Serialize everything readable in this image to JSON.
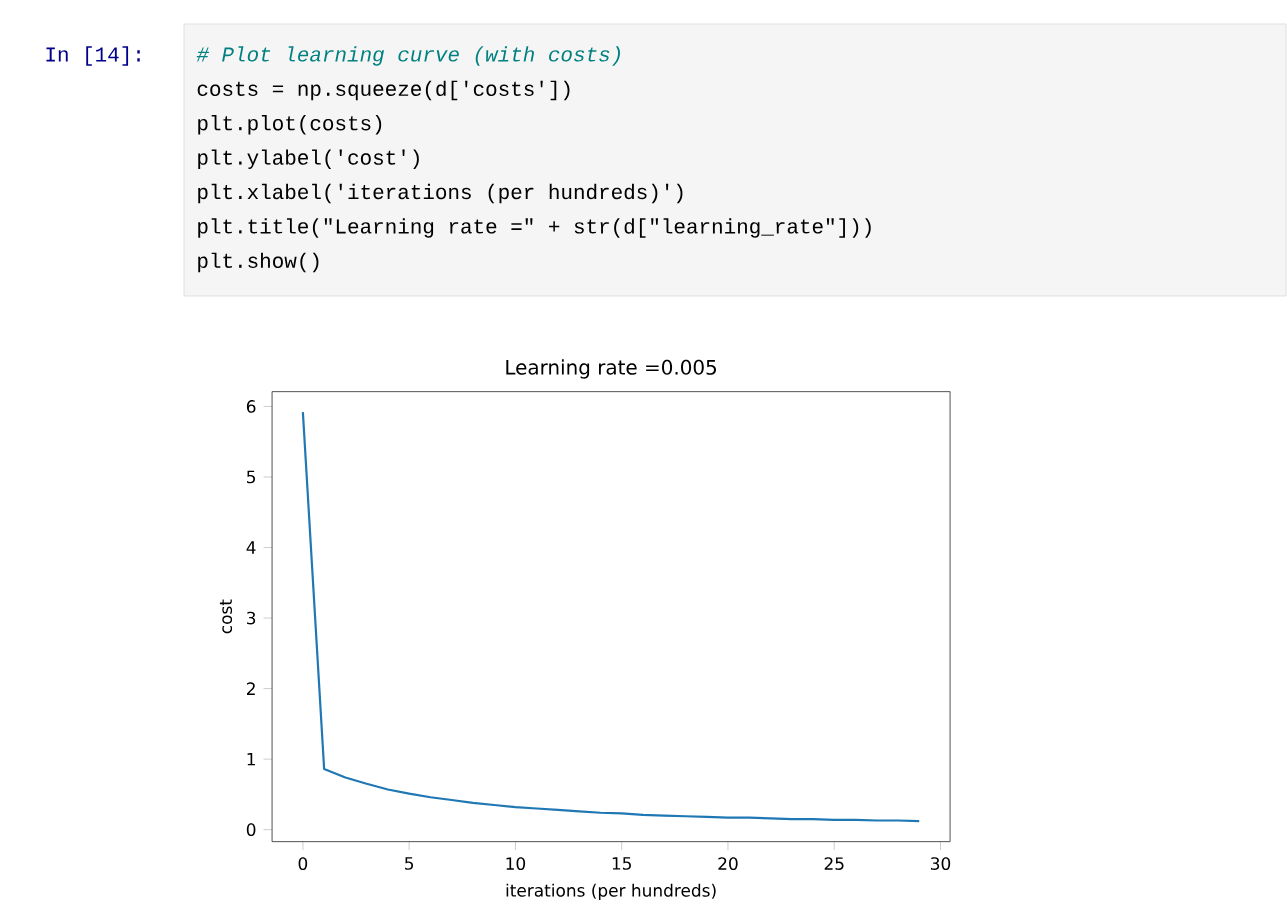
{
  "chart_data": {
    "type": "line",
    "title": "Learning rate =0.005",
    "xlabel": "iterations (per hundreds)",
    "ylabel": "cost",
    "x": [
      0,
      1,
      2,
      3,
      4,
      5,
      6,
      7,
      8,
      9,
      10,
      11,
      12,
      13,
      14,
      15,
      16,
      17,
      18,
      19,
      20,
      21,
      22,
      23,
      24,
      25,
      26,
      27,
      28,
      29
    ],
    "series": [
      {
        "color": "#1f77b4",
        "values": [
          5.92,
          0.86,
          0.74,
          0.65,
          0.57,
          0.51,
          0.46,
          0.42,
          0.38,
          0.35,
          0.32,
          0.3,
          0.28,
          0.26,
          0.24,
          0.23,
          0.21,
          0.2,
          0.19,
          0.18,
          0.17,
          0.17,
          0.16,
          0.15,
          0.15,
          0.14,
          0.14,
          0.13,
          0.13,
          0.12
        ]
      }
    ],
    "xlim": [
      -1.45,
      30.45
    ],
    "ylim": [
      -0.17,
      6.21
    ],
    "xticks": [
      0,
      5,
      10,
      15,
      20,
      25,
      30
    ],
    "yticks": [
      0,
      1,
      2,
      3,
      4,
      5,
      6
    ],
    "annotations": [
      "In  [14]:",
      "# Plot learning curve (with costs)",
      "costs = np.squeeze(d['costs'])",
      "plt.plot(costs)",
      "plt.ylabel('cost')",
      "plt.xlabel('iterations (per hundreds)')",
      "plt.title(\"Learning rate =\" + str(d[\"learning_rate\"]))",
      "plt.show()"
    ]
  }
}
